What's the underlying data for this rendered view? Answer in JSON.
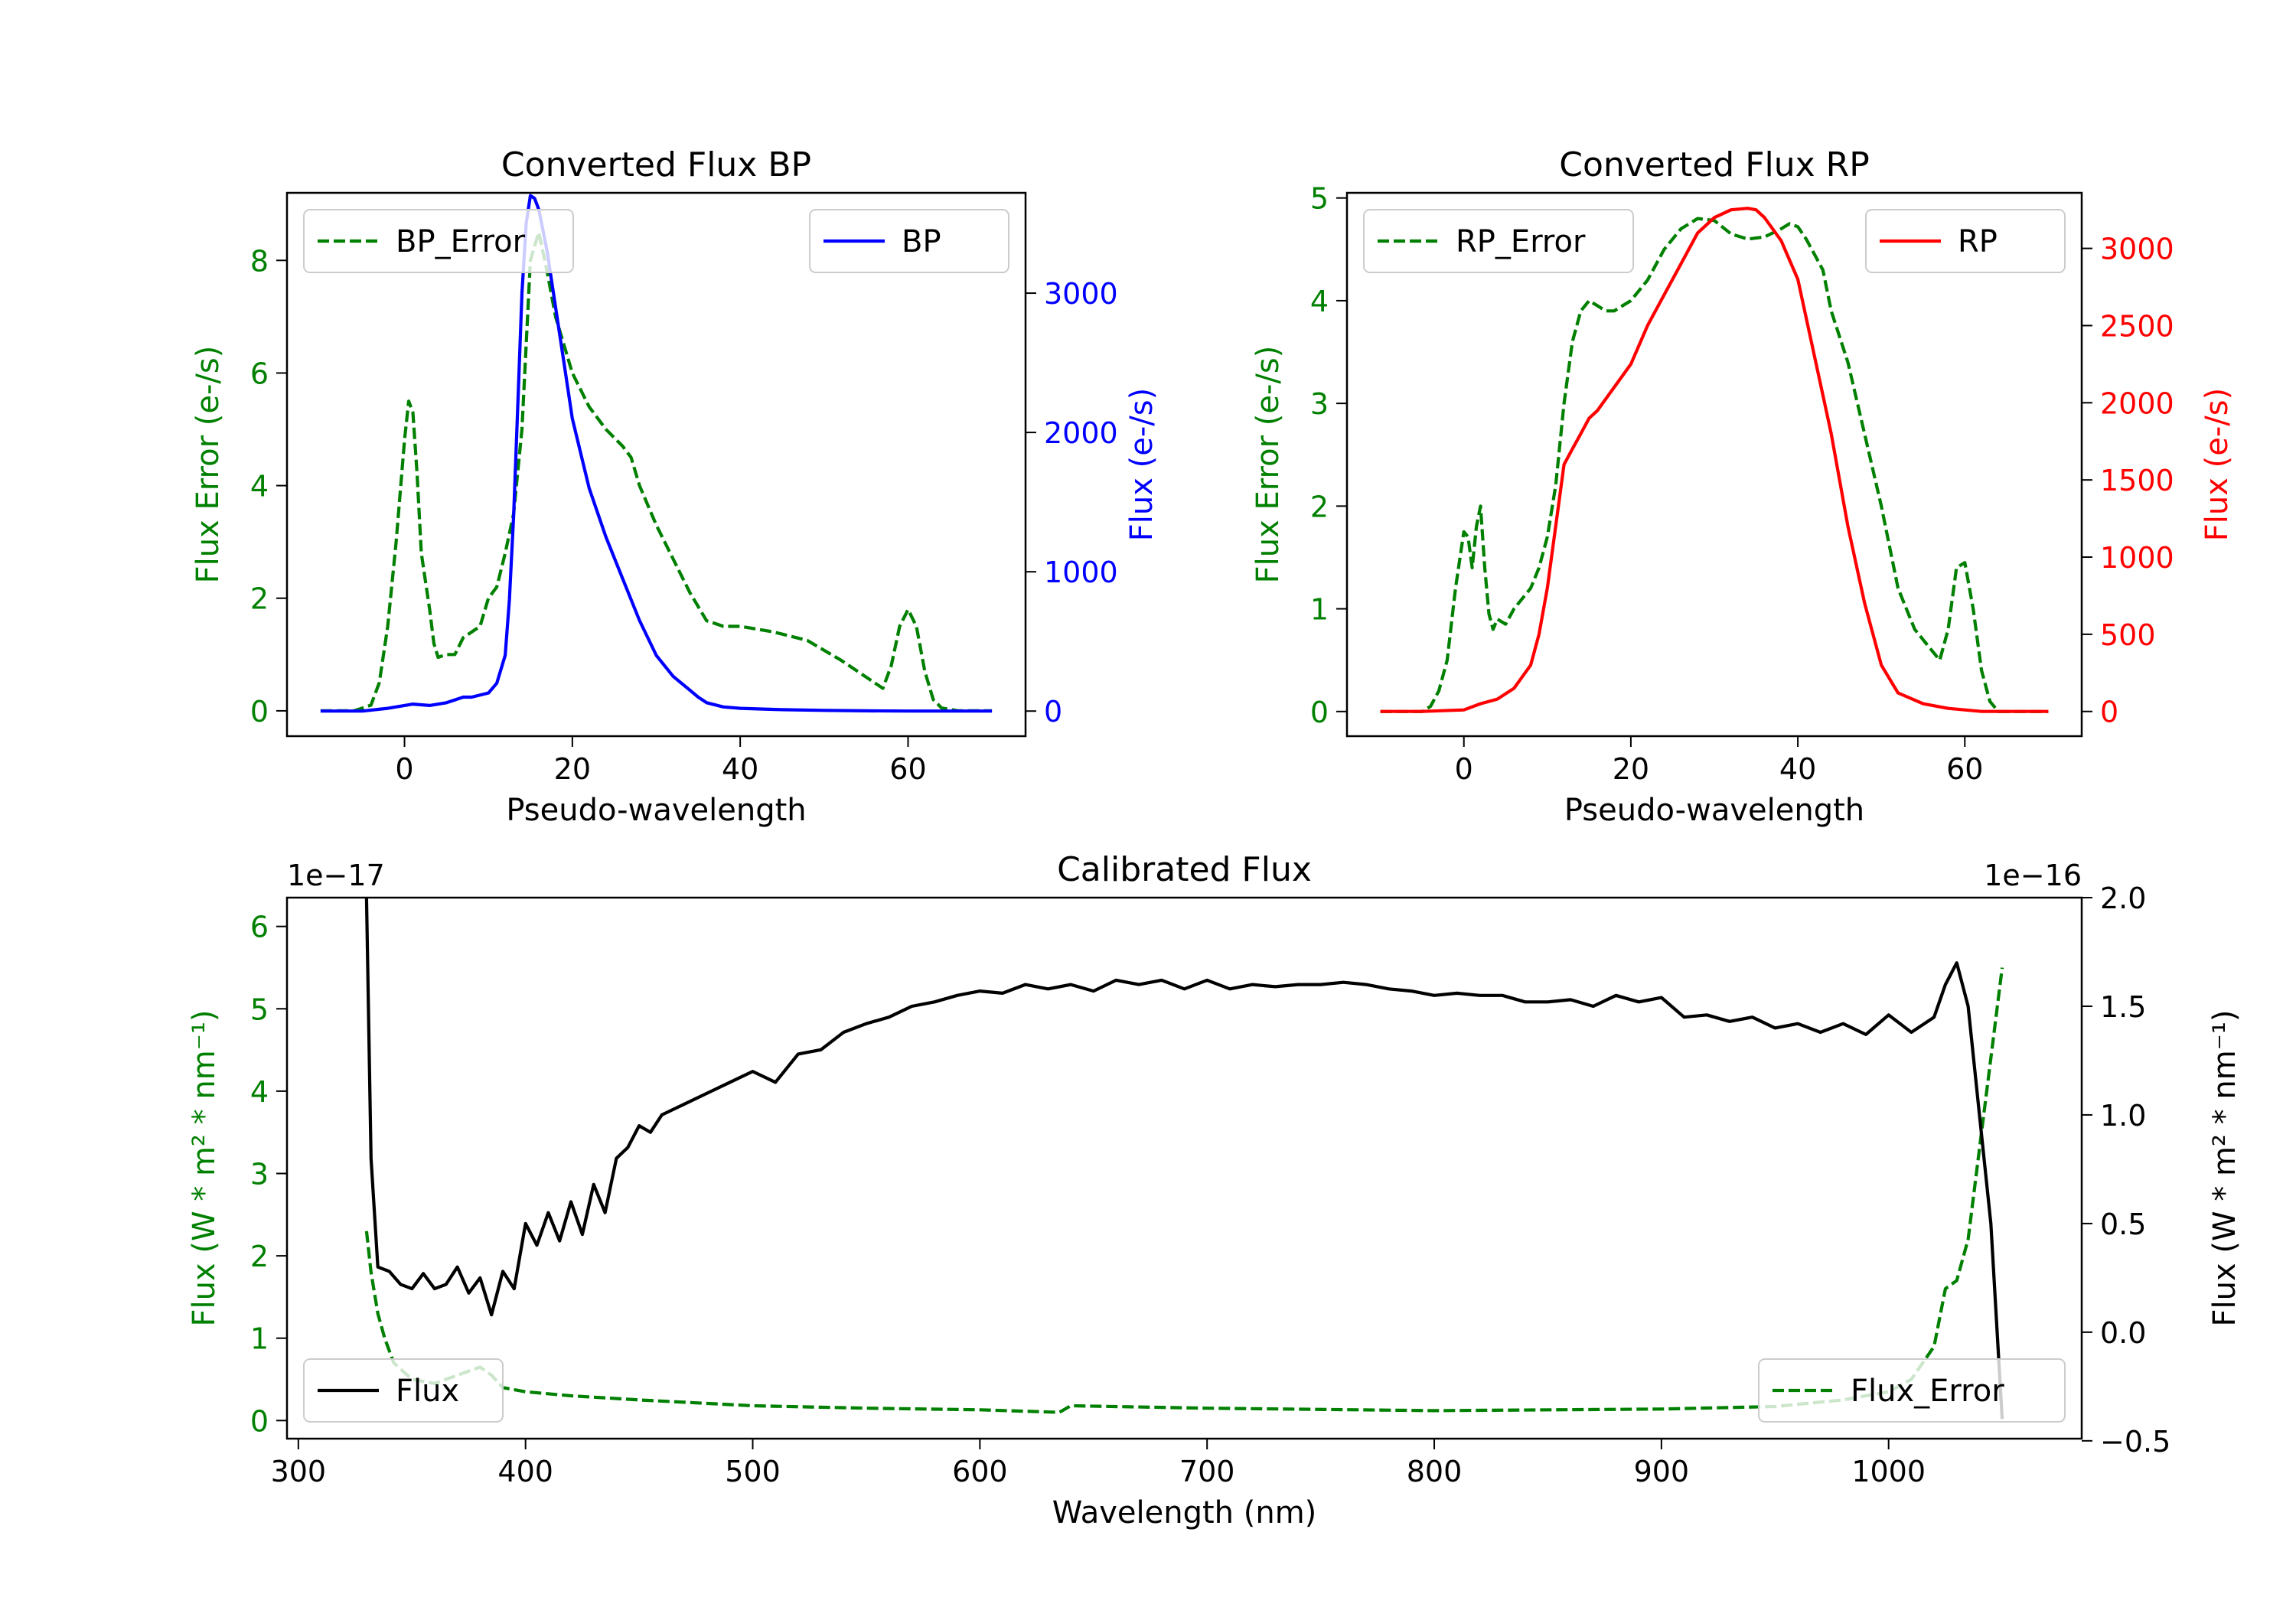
{
  "colors": {
    "green": "#008000",
    "blue": "#0000ff",
    "red": "#ff0000",
    "black": "#000000",
    "axis": "#000000"
  },
  "chart_data": [
    {
      "type": "line",
      "title": "Converted Flux BP",
      "xlabel": "Pseudo-wavelength",
      "xlim": [
        -14,
        74
      ],
      "xticks": [
        0,
        20,
        40,
        60
      ],
      "left_axis": {
        "label": "Flux Error (e-/s)",
        "color": "green",
        "ylim": [
          -0.45,
          9.2
        ],
        "ticks": [
          0,
          2,
          4,
          6,
          8
        ]
      },
      "right_axis": {
        "label": "Flux (e-/s)",
        "color": "blue",
        "ylim": [
          -180,
          3720
        ],
        "ticks": [
          0,
          1000,
          2000,
          3000
        ]
      },
      "legend_left": {
        "label": "BP_Error",
        "position": "upper-left"
      },
      "legend_right": {
        "label": "BP",
        "position": "upper-right"
      },
      "series": [
        {
          "name": "BP_Error",
          "axis": "left",
          "color": "green",
          "style": "dashed",
          "x": [
            -10,
            -6,
            -4,
            -3,
            -2,
            -1,
            0,
            0.5,
            1,
            1.5,
            2,
            3,
            3.5,
            4,
            5,
            6,
            7,
            8,
            9,
            10,
            11,
            12,
            13,
            14,
            14.5,
            15,
            16,
            17,
            18,
            19,
            20,
            22,
            24,
            26,
            27,
            28,
            30,
            32,
            34,
            36,
            37,
            38,
            40,
            44,
            48,
            52,
            56,
            57,
            58,
            59,
            60,
            61,
            62,
            63,
            64,
            66,
            70
          ],
          "y": [
            0,
            0,
            0.1,
            0.5,
            1.5,
            3.0,
            4.8,
            5.5,
            5.3,
            4.2,
            2.8,
            1.8,
            1.2,
            0.95,
            1.0,
            1.0,
            1.3,
            1.4,
            1.5,
            2.0,
            2.2,
            2.8,
            3.5,
            5.0,
            6.5,
            8.0,
            8.5,
            7.8,
            7.0,
            6.5,
            6.0,
            5.4,
            5.0,
            4.7,
            4.5,
            4.0,
            3.3,
            2.7,
            2.1,
            1.6,
            1.55,
            1.5,
            1.5,
            1.4,
            1.25,
            0.9,
            0.5,
            0.4,
            0.8,
            1.5,
            1.8,
            1.5,
            0.7,
            0.2,
            0.05,
            0,
            0
          ]
        },
        {
          "name": "BP",
          "axis": "right",
          "color": "blue",
          "style": "solid",
          "x": [
            -10,
            -5,
            -2,
            0,
            1,
            3,
            5,
            7,
            8,
            10,
            11,
            12,
            12.5,
            13,
            13.5,
            14,
            14.5,
            15,
            15.5,
            16,
            16.5,
            17,
            18,
            19,
            20,
            22,
            24,
            26,
            28,
            30,
            32,
            34,
            35,
            36,
            38,
            40,
            45,
            50,
            55,
            60,
            65,
            70
          ],
          "y": [
            0,
            0,
            20,
            40,
            50,
            40,
            60,
            100,
            100,
            130,
            200,
            400,
            800,
            1400,
            2200,
            3000,
            3500,
            3700,
            3680,
            3600,
            3450,
            3300,
            2900,
            2500,
            2100,
            1600,
            1250,
            950,
            650,
            400,
            250,
            150,
            100,
            60,
            30,
            20,
            10,
            5,
            2,
            0,
            0,
            0
          ]
        }
      ]
    },
    {
      "type": "line",
      "title": "Converted Flux RP",
      "xlabel": "Pseudo-wavelength",
      "xlim": [
        -14,
        74
      ],
      "xticks": [
        0,
        20,
        40,
        60
      ],
      "left_axis": {
        "label": "Flux Error (e-/s)",
        "color": "green",
        "ylim": [
          -0.24,
          5.05
        ],
        "ticks": [
          0,
          1,
          2,
          3,
          4,
          5
        ]
      },
      "right_axis": {
        "label": "Flux (e-/s)",
        "color": "red",
        "ylim": [
          -160,
          3360
        ],
        "ticks": [
          0,
          500,
          1000,
          1500,
          2000,
          2500,
          3000
        ]
      },
      "legend_left": {
        "label": "RP_Error",
        "position": "upper-left"
      },
      "legend_right": {
        "label": "RP",
        "position": "upper-right"
      },
      "series": [
        {
          "name": "RP_Error",
          "axis": "left",
          "color": "green",
          "style": "dashed",
          "x": [
            -10,
            -5,
            -4,
            -3,
            -2,
            -1,
            0,
            0.5,
            1,
            1.5,
            2,
            2.5,
            3,
            3.5,
            4,
            5,
            6,
            7,
            8,
            9,
            10,
            11,
            12,
            13,
            14,
            15,
            16,
            17,
            18,
            19,
            20,
            22,
            24,
            26,
            28,
            30,
            32,
            34,
            36,
            38,
            39,
            40,
            41,
            42,
            43,
            44,
            46,
            48,
            50,
            52,
            54,
            56,
            57,
            58,
            59,
            60,
            61,
            62,
            63,
            64,
            70
          ],
          "y": [
            0,
            0,
            0.05,
            0.2,
            0.5,
            1.2,
            1.75,
            1.7,
            1.4,
            1.8,
            2.0,
            1.4,
            0.95,
            0.8,
            0.9,
            0.85,
            1.0,
            1.1,
            1.2,
            1.4,
            1.7,
            2.2,
            3.0,
            3.6,
            3.9,
            4.0,
            3.95,
            3.9,
            3.9,
            3.95,
            4.0,
            4.2,
            4.5,
            4.7,
            4.8,
            4.78,
            4.65,
            4.6,
            4.62,
            4.7,
            4.75,
            4.72,
            4.6,
            4.45,
            4.3,
            3.9,
            3.4,
            2.7,
            2.0,
            1.2,
            0.8,
            0.6,
            0.5,
            0.8,
            1.4,
            1.45,
            1.0,
            0.4,
            0.1,
            0.0,
            0
          ]
        },
        {
          "name": "RP",
          "axis": "right",
          "color": "red",
          "style": "solid",
          "x": [
            -10,
            -5,
            0,
            2,
            4,
            6,
            8,
            9,
            10,
            11,
            12,
            13,
            14,
            15,
            16,
            18,
            20,
            22,
            24,
            26,
            28,
            30,
            32,
            34,
            35,
            36,
            38,
            40,
            42,
            44,
            46,
            48,
            50,
            52,
            55,
            58,
            62,
            66,
            70
          ],
          "y": [
            0,
            0,
            10,
            50,
            80,
            150,
            300,
            500,
            800,
            1200,
            1600,
            1700,
            1800,
            1900,
            1950,
            2100,
            2250,
            2500,
            2700,
            2900,
            3100,
            3200,
            3250,
            3260,
            3250,
            3200,
            3050,
            2800,
            2300,
            1800,
            1200,
            700,
            300,
            120,
            50,
            20,
            0,
            0,
            0
          ]
        }
      ]
    },
    {
      "type": "line",
      "title": "Calibrated Flux",
      "xlabel": "Wavelength (nm)",
      "xlim": [
        295,
        1085
      ],
      "xticks": [
        300,
        400,
        500,
        600,
        700,
        800,
        900,
        1000
      ],
      "left_axis": {
        "label": "Flux (W * m² * nm⁻¹)",
        "color": "green",
        "ylim": [
          -0.22,
          6.35
        ],
        "ticks": [
          0,
          1,
          2,
          3,
          4,
          5,
          6
        ],
        "offset": "1e−17"
      },
      "right_axis": {
        "label": "Flux (W * m² * nm⁻¹)",
        "color": "black",
        "ylim": [
          -0.49,
          2.0
        ],
        "ticks": [
          -0.5,
          0.0,
          0.5,
          1.0,
          1.5,
          2.0
        ],
        "ticklabels": [
          "−0.5",
          "0.0",
          "0.5",
          "1.0",
          "1.5",
          "2.0"
        ],
        "offset": "1e−16"
      },
      "legend_left": {
        "label": "Flux",
        "position": "lower-left"
      },
      "legend_right": {
        "label": "Flux_Error",
        "position": "lower-right"
      },
      "series": [
        {
          "name": "Flux_Error",
          "axis": "left",
          "color": "green",
          "style": "dashed",
          "x": [
            330,
            332,
            335,
            338,
            342,
            350,
            360,
            380,
            385,
            390,
            400,
            420,
            450,
            500,
            550,
            600,
            635,
            640,
            700,
            800,
            900,
            950,
            980,
            1000,
            1010,
            1020,
            1025,
            1030,
            1035,
            1040,
            1045,
            1050
          ],
          "y": [
            2.3,
            1.8,
            1.3,
            1.0,
            0.7,
            0.5,
            0.45,
            0.65,
            0.55,
            0.4,
            0.35,
            0.3,
            0.25,
            0.18,
            0.15,
            0.13,
            0.1,
            0.18,
            0.15,
            0.12,
            0.14,
            0.17,
            0.25,
            0.35,
            0.5,
            0.9,
            1.6,
            1.7,
            2.2,
            3.3,
            4.4,
            5.5
          ]
        },
        {
          "name": "Flux",
          "axis": "right",
          "color": "black",
          "style": "solid",
          "x": [
            330,
            332,
            335,
            340,
            345,
            350,
            355,
            360,
            365,
            370,
            375,
            380,
            385,
            390,
            395,
            400,
            405,
            410,
            415,
            420,
            425,
            430,
            435,
            440,
            445,
            450,
            455,
            460,
            470,
            480,
            490,
            500,
            510,
            520,
            530,
            540,
            550,
            560,
            570,
            580,
            590,
            600,
            610,
            620,
            630,
            640,
            650,
            660,
            670,
            680,
            690,
            700,
            710,
            720,
            730,
            740,
            750,
            760,
            770,
            780,
            790,
            800,
            810,
            820,
            830,
            840,
            850,
            860,
            870,
            880,
            890,
            900,
            910,
            920,
            930,
            940,
            950,
            960,
            970,
            980,
            990,
            1000,
            1010,
            1020,
            1025,
            1030,
            1035,
            1040,
            1045,
            1050
          ],
          "y": [
            2.0,
            0.8,
            0.3,
            0.28,
            0.22,
            0.2,
            0.27,
            0.2,
            0.22,
            0.3,
            0.18,
            0.25,
            0.08,
            0.28,
            0.2,
            0.5,
            0.4,
            0.55,
            0.42,
            0.6,
            0.45,
            0.68,
            0.55,
            0.8,
            0.85,
            0.95,
            0.92,
            1.0,
            1.05,
            1.1,
            1.15,
            1.2,
            1.15,
            1.28,
            1.3,
            1.38,
            1.42,
            1.45,
            1.5,
            1.52,
            1.55,
            1.57,
            1.56,
            1.6,
            1.58,
            1.6,
            1.57,
            1.62,
            1.6,
            1.62,
            1.58,
            1.62,
            1.58,
            1.6,
            1.59,
            1.6,
            1.6,
            1.61,
            1.6,
            1.58,
            1.57,
            1.55,
            1.56,
            1.55,
            1.55,
            1.52,
            1.52,
            1.53,
            1.5,
            1.55,
            1.52,
            1.54,
            1.45,
            1.46,
            1.43,
            1.45,
            1.4,
            1.42,
            1.38,
            1.42,
            1.37,
            1.46,
            1.38,
            1.45,
            1.6,
            1.7,
            1.5,
            1.0,
            0.5,
            -0.4
          ]
        }
      ]
    }
  ]
}
